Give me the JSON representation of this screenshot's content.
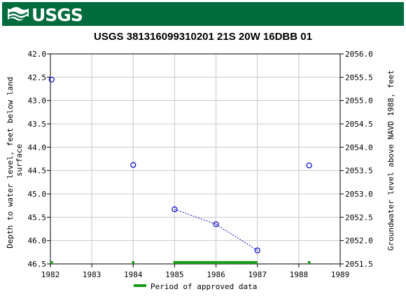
{
  "header": {
    "logo_text": "USGS",
    "logo_icon": "usgs-wave-icon",
    "background_color": "#006b3c"
  },
  "chart_data": {
    "type": "scatter",
    "title": "USGS 381316099310201 21S 20W 16DBB 01",
    "ylabel_left": "Depth to water level, feet below land surface",
    "ylabel_left_lines": [
      "Depth to water level, feet below land",
      "surface"
    ],
    "ylabel_right": "Groundwater level above NAVD 1988, feet",
    "xlim": [
      1982,
      1989
    ],
    "ylim_left": [
      46.5,
      42.0
    ],
    "ylim_right": [
      2051.5,
      2056.0
    ],
    "x_ticks": [
      "1982",
      "1983",
      "1984",
      "1985",
      "1986",
      "1987",
      "1988",
      "1989"
    ],
    "y_ticks_left": [
      "42.0",
      "42.5",
      "43.0",
      "43.5",
      "44.0",
      "44.5",
      "45.0",
      "45.5",
      "46.0",
      "46.5"
    ],
    "y_ticks_right": [
      "2056.0",
      "2055.5",
      "2055.0",
      "2054.5",
      "2054.0",
      "2053.5",
      "2053.0",
      "2052.5",
      "2052.0",
      "2051.5"
    ],
    "grid": true,
    "points": [
      {
        "x": 1982.03,
        "y": 42.55
      },
      {
        "x": 1984.0,
        "y": 44.38
      },
      {
        "x": 1985.0,
        "y": 45.33
      },
      {
        "x": 1986.0,
        "y": 45.65
      },
      {
        "x": 1987.0,
        "y": 46.21
      },
      {
        "x": 1988.25,
        "y": 44.39
      }
    ],
    "connected_segments": [
      [
        2,
        3
      ],
      [
        3,
        4
      ]
    ],
    "point_color": "#0000cc",
    "approved_periods": [
      {
        "start": 1982.0,
        "end": 1982.06
      },
      {
        "start": 1983.97,
        "end": 1984.03
      },
      {
        "start": 1984.97,
        "end": 1987.0
      },
      {
        "start": 1988.22,
        "end": 1988.28
      }
    ],
    "approved_color": "#1a9b1a",
    "legend": {
      "label": "Period of approved data",
      "placement": "bottom"
    }
  }
}
